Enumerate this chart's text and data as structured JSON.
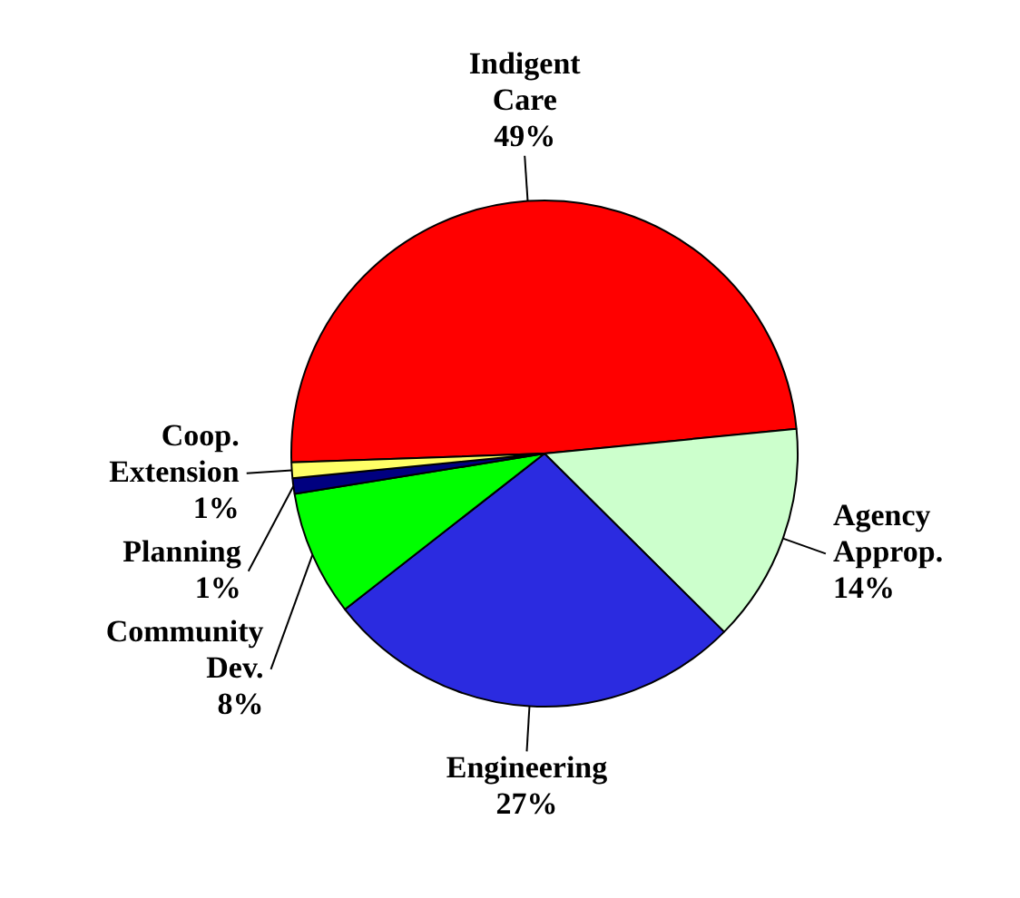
{
  "chart_data": {
    "type": "pie",
    "categories": [
      "Indigent Care",
      "Agency Approp.",
      "Engineering",
      "Community Dev.",
      "Planning",
      "Coop. Extension"
    ],
    "values": [
      49,
      14,
      27,
      8,
      1,
      1
    ],
    "colors": [
      "#ff0000",
      "#ccffcc",
      "#2b2be0",
      "#00ff00",
      "#000080",
      "#ffff66"
    ],
    "value_labels": [
      "49%",
      "14%",
      "27%",
      "8%",
      "1%",
      "1%"
    ],
    "legend": false
  }
}
